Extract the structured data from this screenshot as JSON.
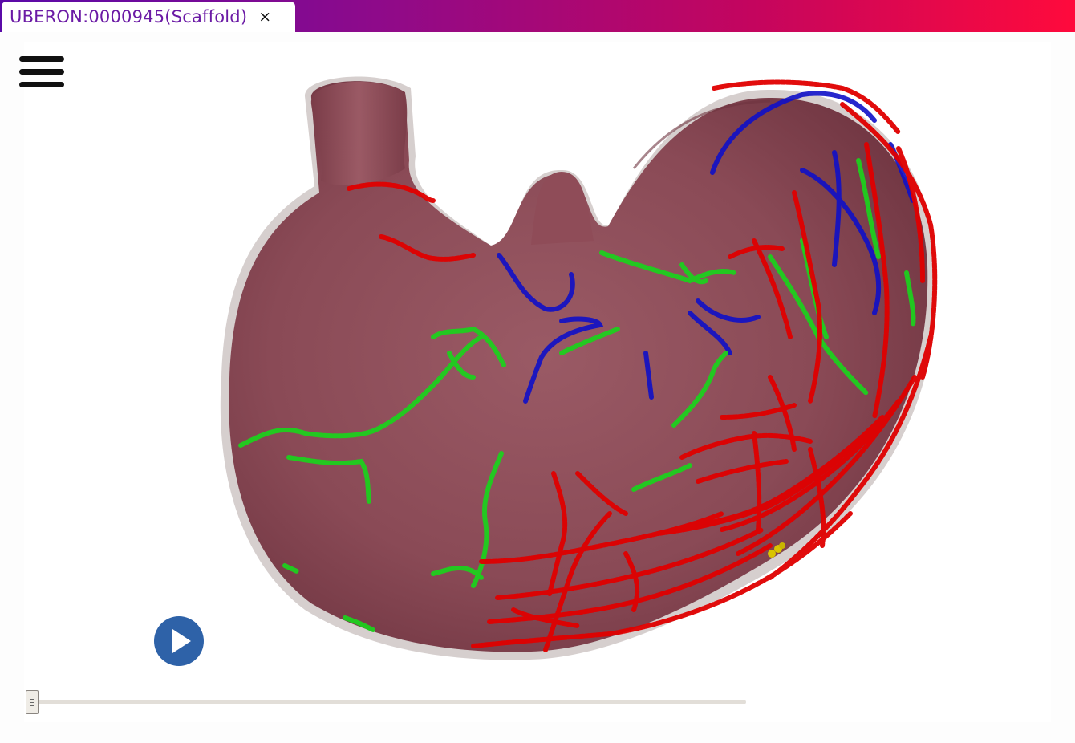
{
  "tab": {
    "title": "UBERON:0000945(Scaffold)",
    "close_glyph": "×"
  },
  "menu": {
    "icon": "hamburger-menu-icon"
  },
  "viewer": {
    "organ": "stomach",
    "colors": {
      "organ_surface": "#8a4a56",
      "organ_shadow": "#bdb3b2",
      "fiber_red": "#e00000",
      "fiber_green": "#1ecf1e",
      "fiber_blue": "#1010c8",
      "marker_yellow": "#d9c400"
    }
  },
  "playback": {
    "play_icon": "play-icon",
    "accent": "#2e62a8",
    "position": 0
  }
}
